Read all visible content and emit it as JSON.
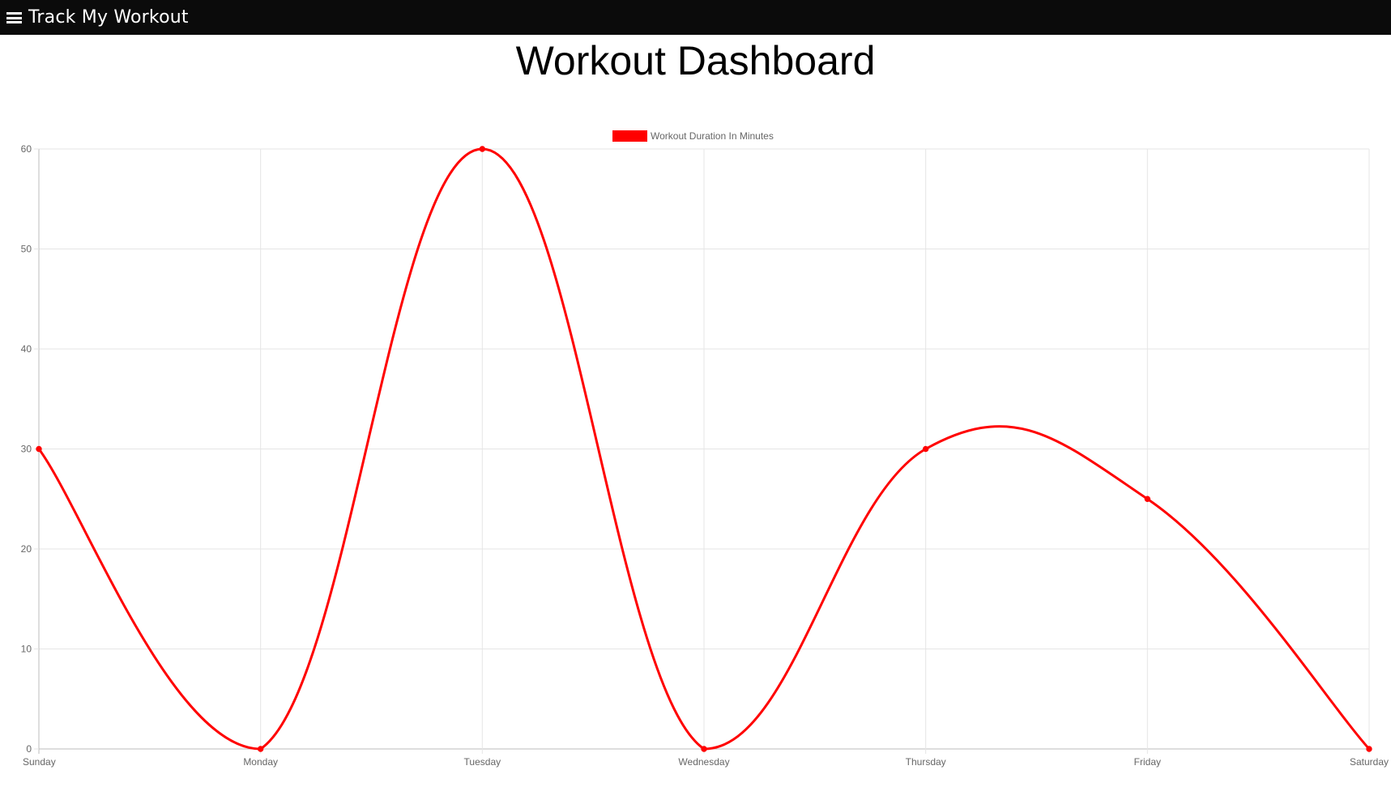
{
  "navbar": {
    "brand": "Track My Workout",
    "menu_icon": "hamburger-menu-icon"
  },
  "page": {
    "title": "Workout Dashboard"
  },
  "chart_data": {
    "type": "line",
    "categories": [
      "Sunday",
      "Monday",
      "Tuesday",
      "Wednesday",
      "Thursday",
      "Friday",
      "Saturday"
    ],
    "series": [
      {
        "name": "Workout Duration In Minutes",
        "values": [
          30,
          0,
          60,
          0,
          30,
          25,
          0
        ],
        "color": "#ff0000"
      }
    ],
    "ylim": [
      0,
      60
    ],
    "yticks": [
      0,
      10,
      20,
      30,
      40,
      50,
      60
    ],
    "grid": true,
    "legend": "top-center",
    "curve": "smooth"
  },
  "colors": {
    "navbar_bg": "#0b0b0b",
    "grid": "#e5e5e5",
    "axis_text": "#666666"
  }
}
